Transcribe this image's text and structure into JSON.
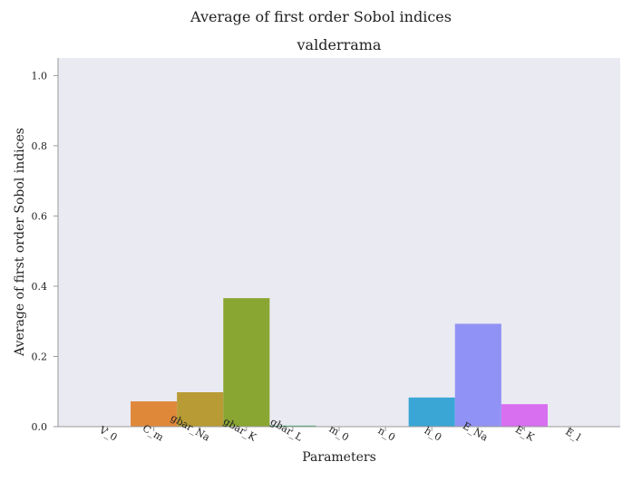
{
  "chart_data": {
    "type": "bar",
    "suptitle": "Average of first order Sobol indices",
    "title": "valderrama",
    "xlabel": "Parameters",
    "ylabel": "Average of first order Sobol indices",
    "ylim": [
      0,
      1.05
    ],
    "yticks": [
      "0.0",
      "0.2",
      "0.4",
      "0.6",
      "0.8",
      "1.0"
    ],
    "ytick_values": [
      0,
      0.2,
      0.4,
      0.6,
      0.8,
      1.0
    ],
    "grid": false,
    "background": "#eaeaf2",
    "categories": [
      "V_0",
      "C_m",
      "gbar_Na",
      "gbar_K",
      "gbar_L",
      "m_0",
      "n_0",
      "h_0",
      "E_Na",
      "E_K",
      "E_l"
    ],
    "values": [
      0.0,
      0.072,
      0.098,
      0.366,
      0.003,
      0.0,
      0.0,
      0.083,
      0.293,
      0.064,
      0.0
    ],
    "colors": [
      "#e8645a",
      "#e0883a",
      "#b89b34",
      "#8aa632",
      "#3fae6a",
      "#2aa79a",
      "#2fa8b4",
      "#3aa6d6",
      "#9192f5",
      "#d86ef0",
      "#f266b6"
    ]
  }
}
